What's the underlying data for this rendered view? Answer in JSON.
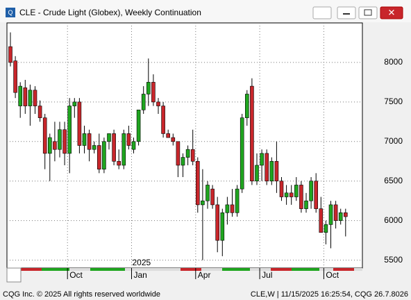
{
  "chart_data": {
    "type": "candlestick",
    "title": "CLE - Crude Light (Globex), Weekly Continuation",
    "categories": [
      null,
      null,
      null,
      null,
      null,
      null,
      null,
      null,
      null,
      null,
      null,
      null,
      "Oct",
      null,
      null,
      null,
      null,
      null,
      null,
      null,
      null,
      null,
      null,
      null,
      null,
      "Jan",
      null,
      null,
      null,
      null,
      null,
      null,
      null,
      null,
      null,
      null,
      null,
      null,
      "Apr",
      null,
      null,
      null,
      null,
      null,
      null,
      null,
      null,
      null,
      null,
      null,
      null,
      "Jul",
      null,
      null,
      null,
      null,
      null,
      null,
      null,
      null,
      null,
      null,
      null,
      null,
      "Oct",
      null,
      null,
      null,
      null
    ],
    "annotation": "2025",
    "series": [
      {
        "up_color": "#1fa51f",
        "down_color": "#c8262b",
        "open": [
          8200,
          8020,
          7450,
          7680,
          7450,
          7650,
          7450,
          7300,
          6850,
          7000,
          6900,
          7150,
          6850,
          7450,
          7500,
          6950,
          7100,
          6900,
          6950,
          6650,
          7000,
          7100,
          6750,
          6700,
          7100,
          6900,
          7000,
          7400,
          7600,
          7750,
          7500,
          7450,
          7100,
          7050,
          7000,
          6700,
          6800,
          6900,
          6750,
          6200,
          6250,
          6400,
          6200,
          5750,
          6100,
          6200,
          6100,
          6400,
          7300,
          7700,
          6500,
          6700,
          6850,
          6500,
          6750,
          6500,
          6300,
          6350,
          6300,
          6450,
          6150,
          6250,
          6500,
          6150,
          5850,
          5950,
          6200,
          6000,
          6100
        ],
        "high": [
          8380,
          8080,
          7750,
          7780,
          7720,
          7700,
          7520,
          7350,
          7100,
          7250,
          7250,
          7250,
          7550,
          7550,
          7550,
          7200,
          7150,
          7000,
          7100,
          7050,
          7100,
          7150,
          6900,
          7150,
          7200,
          7050,
          7400,
          7700,
          8050,
          7850,
          7550,
          7500,
          7150,
          7100,
          7000,
          6850,
          6950,
          7150,
          6800,
          6650,
          6500,
          6450,
          6300,
          6150,
          6300,
          6400,
          6450,
          7350,
          7650,
          7800,
          6850,
          6900,
          6900,
          6800,
          7000,
          6550,
          6450,
          6450,
          6550,
          6500,
          6350,
          6550,
          6600,
          6300,
          6000,
          6250,
          6250,
          6150,
          6150
        ],
        "low": [
          7950,
          7550,
          7300,
          7350,
          7200,
          7350,
          7250,
          6650,
          6500,
          6750,
          6800,
          6700,
          6600,
          7300,
          6850,
          6850,
          6750,
          6850,
          6600,
          6600,
          6900,
          6700,
          6650,
          6650,
          6900,
          6850,
          6950,
          7350,
          7450,
          7450,
          7350,
          7050,
          7050,
          6950,
          6550,
          6550,
          6700,
          6700,
          6100,
          5500,
          6150,
          6150,
          5600,
          5550,
          5950,
          6050,
          6050,
          6350,
          7200,
          6450,
          6450,
          6500,
          6450,
          6450,
          6350,
          6250,
          6200,
          6200,
          6250,
          6100,
          6100,
          6150,
          6100,
          5850,
          5700,
          5650,
          5900,
          5950,
          5800
        ],
        "close": [
          8000,
          7620,
          7700,
          7450,
          7650,
          7450,
          7300,
          6850,
          7050,
          6900,
          7150,
          6850,
          7450,
          7500,
          6950,
          7100,
          6900,
          6950,
          6650,
          7000,
          7100,
          6750,
          6700,
          7100,
          6950,
          7000,
          7400,
          7600,
          7750,
          7500,
          7450,
          7100,
          7050,
          7000,
          6700,
          6800,
          6900,
          6750,
          6200,
          6250,
          6450,
          6200,
          5750,
          6100,
          6200,
          6100,
          6400,
          7300,
          7600,
          6500,
          6700,
          6850,
          6500,
          6750,
          6500,
          6300,
          6350,
          6300,
          6450,
          6150,
          6250,
          6500,
          6150,
          5850,
          5950,
          6200,
          6000,
          6100,
          6050
        ]
      }
    ],
    "ylim": [
      5400,
      8500
    ],
    "yticks": [
      5500,
      6000,
      6500,
      7000,
      7500,
      8000
    ],
    "grid": true
  },
  "footer": {
    "left": "CQG Inc. © 2025 All rights reserved worldwide",
    "right": "CLE,W | 11/15/2025 16:25:54, CQG 26.7.8026"
  }
}
